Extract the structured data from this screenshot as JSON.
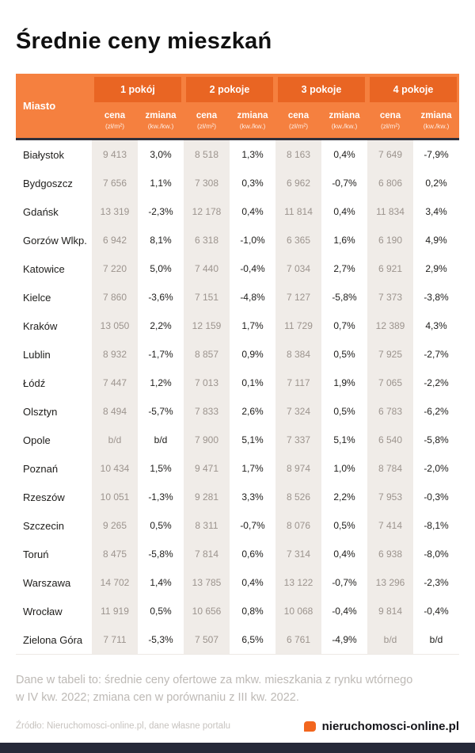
{
  "page": {
    "title": "Średnie ceny mieszkań",
    "footnote_line1": "Dane w tabeli to: średnie ceny ofertowe za mkw. mieszkania z rynku wtórnego",
    "footnote_line2": "w IV kw. 2022; zmiana cen w porównaniu z III kw. 2022.",
    "source": "Źródło: Nieruchomosci-online.pl, dane własne portalu",
    "brand": "nieruchomosci-online.pl"
  },
  "table": {
    "city_header": "Miasto",
    "groups": [
      "1 pokój",
      "2 pokoje",
      "3 pokoje",
      "4 pokoje"
    ],
    "sub_headers": {
      "price": "cena",
      "price_unit": "(zł/m²)",
      "change": "zmiana",
      "change_unit": "(kw./kw.)"
    }
  },
  "colors": {
    "accent_orange": "#F5803F",
    "header_dark_orange": "#E96523",
    "price_column_bg": "#F0ECE8",
    "footer_bar": "#262939",
    "brand_orange": "#F2661E"
  },
  "chart_data": {
    "type": "table",
    "title": "Średnie ceny mieszkań",
    "columns": [
      "Miasto",
      "1 pokój — cena (zł/m²)",
      "1 pokój — zmiana (kw./kw.)",
      "2 pokoje — cena (zł/m²)",
      "2 pokoje — zmiana (kw./kw.)",
      "3 pokoje — cena (zł/m²)",
      "3 pokoje — zmiana (kw./kw.)",
      "4 pokoje — cena (zł/m²)",
      "4 pokoje — zmiana (kw./kw.)"
    ],
    "rows": [
      [
        "Białystok",
        "9 413",
        "3,0%",
        "8 518",
        "1,3%",
        "8 163",
        "0,4%",
        "7 649",
        "-7,9%"
      ],
      [
        "Bydgoszcz",
        "7 656",
        "1,1%",
        "7 308",
        "0,3%",
        "6 962",
        "-0,7%",
        "6 806",
        "0,2%"
      ],
      [
        "Gdańsk",
        "13 319",
        "-2,3%",
        "12 178",
        "0,4%",
        "11 814",
        "0,4%",
        "11 834",
        "3,4%"
      ],
      [
        "Gorzów Wlkp.",
        "6 942",
        "8,1%",
        "6 318",
        "-1,0%",
        "6 365",
        "1,6%",
        "6 190",
        "4,9%"
      ],
      [
        "Katowice",
        "7 220",
        "5,0%",
        "7 440",
        "-0,4%",
        "7 034",
        "2,7%",
        "6 921",
        "2,9%"
      ],
      [
        "Kielce",
        "7 860",
        "-3,6%",
        "7 151",
        "-4,8%",
        "7 127",
        "-5,8%",
        "7 373",
        "-3,8%"
      ],
      [
        "Kraków",
        "13 050",
        "2,2%",
        "12 159",
        "1,7%",
        "11 729",
        "0,7%",
        "12 389",
        "4,3%"
      ],
      [
        "Lublin",
        "8 932",
        "-1,7%",
        "8 857",
        "0,9%",
        "8 384",
        "0,5%",
        "7 925",
        "-2,7%"
      ],
      [
        "Łódź",
        "7 447",
        "1,2%",
        "7 013",
        "0,1%",
        "7 117",
        "1,9%",
        "7 065",
        "-2,2%"
      ],
      [
        "Olsztyn",
        "8 494",
        "-5,7%",
        "7 833",
        "2,6%",
        "7 324",
        "0,5%",
        "6 783",
        "-6,2%"
      ],
      [
        "Opole",
        "b/d",
        "b/d",
        "7 900",
        "5,1%",
        "7 337",
        "5,1%",
        "6 540",
        "-5,8%"
      ],
      [
        "Poznań",
        "10 434",
        "1,5%",
        "9 471",
        "1,7%",
        "8 974",
        "1,0%",
        "8 784",
        "-2,0%"
      ],
      [
        "Rzeszów",
        "10 051",
        "-1,3%",
        "9 281",
        "3,3%",
        "8 526",
        "2,2%",
        "7 953",
        "-0,3%"
      ],
      [
        "Szczecin",
        "9 265",
        "0,5%",
        "8 311",
        "-0,7%",
        "8 076",
        "0,5%",
        "7 414",
        "-8,1%"
      ],
      [
        "Toruń",
        "8 475",
        "-5,8%",
        "7 814",
        "0,6%",
        "7 314",
        "0,4%",
        "6 938",
        "-8,0%"
      ],
      [
        "Warszawa",
        "14 702",
        "1,4%",
        "13 785",
        "0,4%",
        "13 122",
        "-0,7%",
        "13 296",
        "-2,3%"
      ],
      [
        "Wrocław",
        "11 919",
        "0,5%",
        "10 656",
        "0,8%",
        "10 068",
        "-0,4%",
        "9 814",
        "-0,4%"
      ],
      [
        "Zielona Góra",
        "7 711",
        "-5,3%",
        "7 507",
        "6,5%",
        "6 761",
        "-4,9%",
        "b/d",
        "b/d"
      ]
    ]
  }
}
